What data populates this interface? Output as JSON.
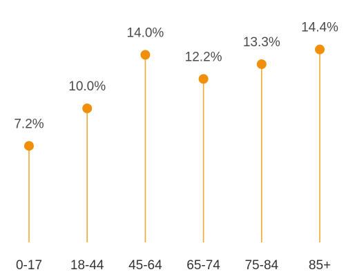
{
  "chart_data": {
    "type": "lollipop",
    "categories": [
      "0-17",
      "18-44",
      "45-64",
      "65-74",
      "75-84",
      "85+"
    ],
    "values": [
      7.2,
      10.0,
      14.0,
      12.2,
      13.3,
      14.4
    ],
    "value_labels": [
      "7.2%",
      "10.0%",
      "14.0%",
      "12.2%",
      "13.3%",
      "14.4%"
    ],
    "title": "",
    "xlabel": "",
    "ylabel": "",
    "ylim": [
      0,
      14.4
    ],
    "grid": false,
    "colors": {
      "stem": "#f0a830",
      "marker": "#f0900a",
      "label": "#4a4a4a",
      "tick_label": "#333333"
    }
  }
}
